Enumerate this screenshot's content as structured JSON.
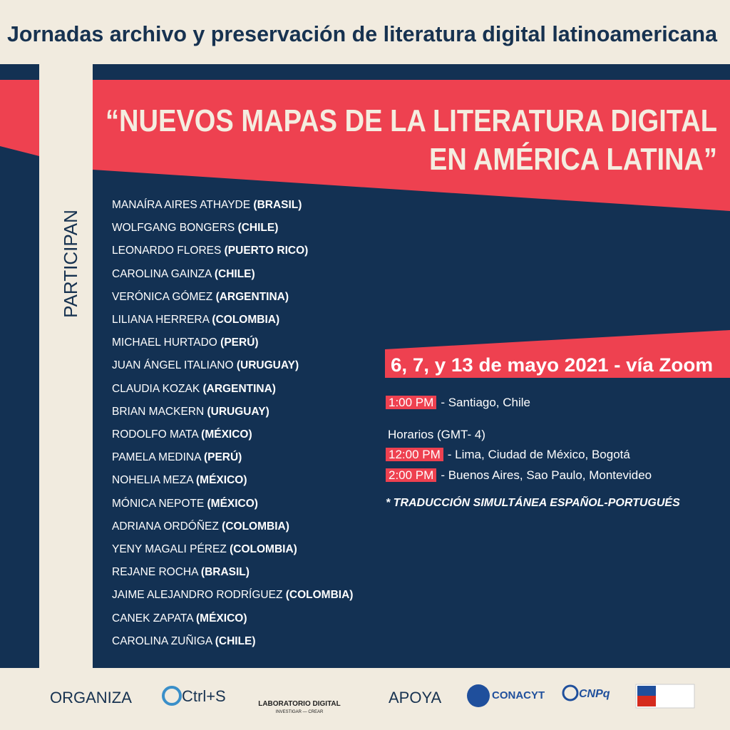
{
  "header": {
    "title": "Jornadas archivo y preservación de literatura digital latinoamericana"
  },
  "banner": {
    "lines": [
      "“NUEVOS MAPAS DE LA LITERATURA DIGITAL",
      "EN AMÉRICA LATINA”"
    ]
  },
  "side_label": "PARTICIPAN",
  "participants": [
    {
      "name": "MANAÍRA AIRES ATHAYDE",
      "country": "(BRASIL)"
    },
    {
      "name": "WOLFGANG BONGERS",
      "country": "(CHILE)"
    },
    {
      "name": "LEONARDO FLORES",
      "country": "(PUERTO RICO)"
    },
    {
      "name": "CAROLINA GAINZA",
      "country": "(CHILE)"
    },
    {
      "name": "VERÓNICA GÓMEZ",
      "country": "(ARGENTINA)"
    },
    {
      "name": "LILIANA HERRERA",
      "country": "(COLOMBIA)"
    },
    {
      "name": "MICHAEL HURTADO",
      "country": "(PERÚ)"
    },
    {
      "name": "JUAN ÁNGEL ITALIANO",
      "country": "(URUGUAY)"
    },
    {
      "name": "CLAUDIA KOZAK",
      "country": "(ARGENTINA)"
    },
    {
      "name": "BRIAN MACKERN",
      "country": "(URUGUAY)"
    },
    {
      "name": "RODOLFO MATA",
      "country": "(MÉXICO)"
    },
    {
      "name": "PAMELA MEDINA",
      "country": "(PERÚ)"
    },
    {
      "name": "NOHELIA MEZA",
      "country": "(MÉXICO)"
    },
    {
      "name": "MÓNICA NEPOTE",
      "country": "(MÉXICO)"
    },
    {
      "name": "ADRIANA ORDÓÑEZ",
      "country": "(COLOMBIA)"
    },
    {
      "name": "YENY MAGALI PÉREZ",
      "country": "(COLOMBIA)"
    },
    {
      "name": "REJANE ROCHA",
      "country": "(BRASIL)"
    },
    {
      "name": "JAIME ALEJANDRO RODRÍGUEZ",
      "country": "(COLOMBIA)"
    },
    {
      "name": "CANEK ZAPATA",
      "country": "(MÉXICO)"
    },
    {
      "name": "CAROLINA ZUÑIGA",
      "country": "(CHILE)"
    }
  ],
  "event": {
    "date": "6, 7, y 13 de mayo 2021 - vía Zoom",
    "local": {
      "time": "1:00 PM",
      "place": "- Santiago, Chile"
    },
    "schedule_heading": "Horarios (GMT- 4)",
    "schedule": [
      {
        "time": "12:00 PM",
        "place": "- Lima, Ciudad de México, Bogotá"
      },
      {
        "time": "2:00 PM",
        "place": "- Buenos Aires, Sao Paulo, Montevideo"
      }
    ],
    "note": "* TRADUCCIÓN SIMULTÁNEA ESPAÑOL-PORTUGUÉS"
  },
  "footer": {
    "organiza_label": "ORGANIZA",
    "organizers": [
      "Ctrl+S",
      "LABORATORIO DIGITAL",
      "INVESTIGAR — CREAR"
    ],
    "apoya_label": "APOYA",
    "supporters": [
      "CONACYT",
      "CNPq"
    ]
  }
}
